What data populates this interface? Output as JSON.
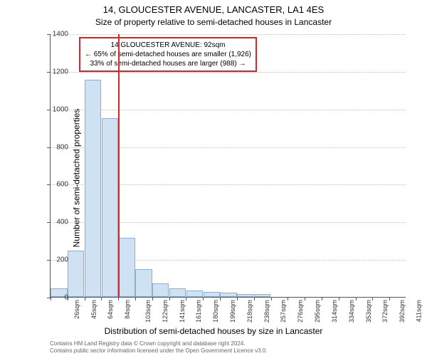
{
  "chart": {
    "type": "histogram",
    "title": "14, GLOUCESTER AVENUE, LANCASTER, LA1 4ES",
    "subtitle": "Size of property relative to semi-detached houses in Lancaster",
    "ylabel": "Number of semi-detached properties",
    "xlabel": "Distribution of semi-detached houses by size in Lancaster",
    "ylim_min": 0,
    "ylim_max": 1400,
    "ytick_step": 200,
    "yticks": [
      0,
      200,
      400,
      600,
      800,
      1000,
      1200,
      1400
    ],
    "xtick_labels": [
      "26sqm",
      "45sqm",
      "64sqm",
      "84sqm",
      "103sqm",
      "122sqm",
      "141sqm",
      "161sqm",
      "180sqm",
      "199sqm",
      "218sqm",
      "238sqm",
      "257sqm",
      "276sqm",
      "295sqm",
      "314sqm",
      "334sqm",
      "353sqm",
      "372sqm",
      "392sqm",
      "411sqm"
    ],
    "bars": [
      44,
      247,
      1155,
      949,
      313,
      146,
      73,
      47,
      33,
      27,
      21,
      15,
      14,
      0,
      0,
      0,
      0,
      0,
      0,
      0,
      0
    ],
    "bar_fill": "#cfe2f3",
    "bar_border": "#8faecc",
    "grid_color": "#bfbfbf",
    "background_color": "#ffffff",
    "axis_color": "#555555",
    "marker_line_color": "#d62728",
    "marker_bar_index": 3,
    "title_fontsize": 13,
    "subtitle_fontsize": 12,
    "label_fontsize": 12,
    "tick_fontsize": 10,
    "annotation": {
      "line1": "14 GLOUCESTER AVENUE: 92sqm",
      "line2": "← 65% of semi-detached houses are smaller (1,926)",
      "line3": "33% of semi-detached houses are larger (988) →",
      "border_color": "#d62728",
      "background": "#ffffff",
      "fontsize": 10
    },
    "attribution": {
      "line1": "Contains HM Land Registry data © Crown copyright and database right 2024.",
      "line2": "Contains public sector information licensed under the Open Government Licence v3.0."
    }
  }
}
